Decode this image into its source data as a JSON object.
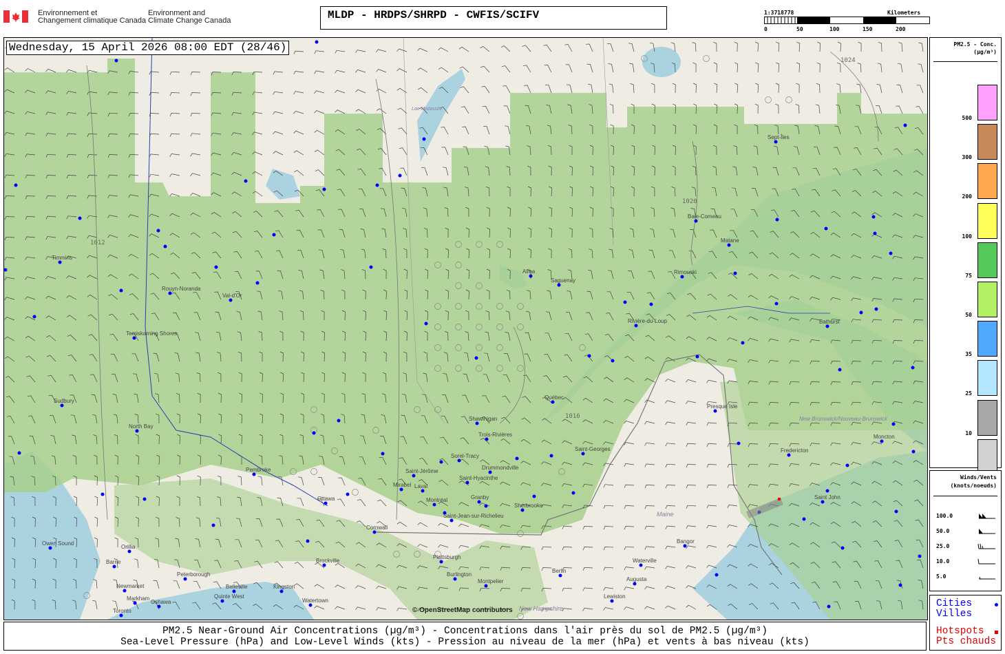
{
  "header": {
    "agency_fr_line1": "Environnement et",
    "agency_fr_line2": "Changement climatique Canada",
    "agency_en_line1": "Environment and",
    "agency_en_line2": "Climate Change Canada",
    "product_title": "MLDP - HRDPS/SHRPD - CWFIS/SCIFV",
    "scale": {
      "ratio": "1:3718778",
      "unit": "Kilometers",
      "ticks": [
        "0",
        "50",
        "100",
        "150",
        "200"
      ]
    }
  },
  "map": {
    "valid_time": "Wednesday, 15 April 2026 08:00 EDT (28/46)",
    "attribution": "© OpenStreetMap contributors",
    "colors": {
      "land": "#efece4",
      "water": "#aad3df",
      "smoke_low": "#a8d08d"
    },
    "labels": [
      "Timmins",
      "Rouyn-Noranda",
      "Val-d'Or",
      "Temiskaming Shores",
      "Sudbury",
      "North Bay",
      "Pembroke",
      "Ottawa",
      "Saint-Jérôme",
      "Mirabel",
      "Laval",
      "Montréal",
      "Cornwall",
      "Brockville",
      "Kingston",
      "Belleville",
      "Peterborough",
      "Orillia",
      "Barrie",
      "Newmarket",
      "Markham",
      "Toronto",
      "Oshawa",
      "Owen Sound",
      "Quinte West",
      "Watertown",
      "Plattsburgh",
      "Burlington",
      "Montpelier",
      "Saint-Jean-sur-Richelieu",
      "Granby",
      "Saint-Hyacinthe",
      "Drummondville",
      "Sherbrooke",
      "Sorel-Tracy",
      "Trois-Rivières",
      "Shawinigan",
      "Québec",
      "Saint-Georges",
      "Alma",
      "Saguenay",
      "Rivière-du-Loup",
      "Rimouski",
      "Matane",
      "Baie-Comeau",
      "Sept-Îles",
      "Bathurst",
      "Presque Isle",
      "Fredericton",
      "Moncton",
      "Saint John",
      "Bangor",
      "Waterville",
      "Augusta",
      "Lewiston",
      "Berlin"
    ],
    "region_labels": [
      "Maine",
      "New Brunswick/Nouveau-Brunswick",
      "New Hampshire",
      "Lac Mistassini"
    ],
    "isobars": [
      "1012",
      "1016",
      "1020",
      "1024"
    ]
  },
  "pm_legend": {
    "title": "PM2.5 - Conc.",
    "unit": "(µg/m³)",
    "bins": [
      {
        "label": "500",
        "color": "#ffa0ff"
      },
      {
        "label": "300",
        "color": "#c68a58"
      },
      {
        "label": "200",
        "color": "#ffa850"
      },
      {
        "label": "100",
        "color": "#ffff5a"
      },
      {
        "label": "75",
        "color": "#55c85a"
      },
      {
        "label": "50",
        "color": "#b4f064"
      },
      {
        "label": "35",
        "color": "#50a8ff"
      },
      {
        "label": "25",
        "color": "#b4e6ff"
      },
      {
        "label": "10",
        "color": "#a8a8a8"
      },
      {
        "label": "5",
        "color": "#d2d2d2"
      }
    ]
  },
  "wind_legend": {
    "title": "Winds/Vents",
    "unit": "(knots/noeuds)",
    "speeds": [
      "100.0",
      "50.0",
      "25.0",
      "10.0",
      "5.0"
    ]
  },
  "symbols": {
    "cities_en": "Cities",
    "cities_fr": "Villes",
    "city_color": "#0000ff",
    "hotspots_en": "Hotspots",
    "hotspots_fr": "Pts chauds",
    "hotspot_color": "#ff0000"
  },
  "footer": {
    "line1": "PM2.5 Near-Ground Air Concentrations (µg/m³) - Concentrations dans l'air près du sol de PM2.5 (µg/m³)",
    "line2": "Sea-Level Pressure (hPa) and Low-Level Winds (kts) - Pression au niveau de la mer (hPa) et vents à bas niveau (kts)"
  }
}
